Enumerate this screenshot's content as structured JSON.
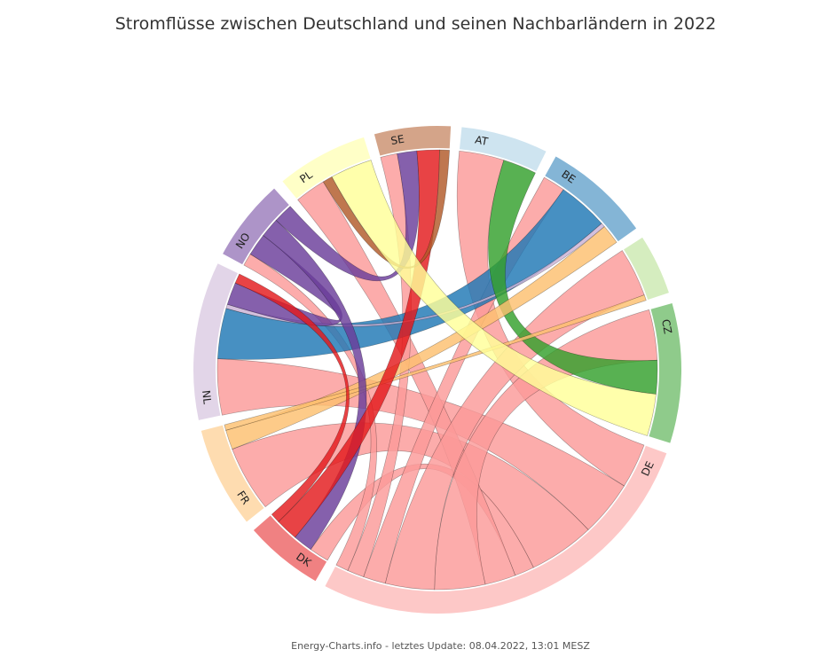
{
  "title": "Stromflüsse zwischen Deutschland und seinen Nachbarländern in 2022",
  "footer": "Energy-Charts.info - letztes Update: 08.04.2022, 13:01 MESZ",
  "chart_data": {
    "type": "chord",
    "title": "Stromflüsse zwischen Deutschland und seinen Nachbarländern in 2022",
    "countries": [
      {
        "id": "AT",
        "label": "AT",
        "color": "#a6cee3"
      },
      {
        "id": "BE",
        "label": "BE",
        "color": "#1f78b4"
      },
      {
        "id": "CH",
        "label": "",
        "color": "#b2df8a"
      },
      {
        "id": "CZ",
        "label": "CZ",
        "color": "#33a02c"
      },
      {
        "id": "DE",
        "label": "DE",
        "color": "#fb9a99"
      },
      {
        "id": "DK",
        "label": "DK",
        "color": "#e31a1c"
      },
      {
        "id": "FR",
        "label": "FR",
        "color": "#fdbf6f"
      },
      {
        "id": "NL",
        "label": "NL",
        "color": "#cab2d6"
      },
      {
        "id": "NO",
        "label": "NO",
        "color": "#6a3d9a"
      },
      {
        "id": "PL",
        "label": "PL",
        "color": "#ffff99"
      },
      {
        "id": "SE",
        "label": "SE",
        "color": "#b15928"
      }
    ],
    "flows": [
      {
        "from": "DE",
        "to": "AT",
        "value": 3.2
      },
      {
        "from": "DE",
        "to": "NL",
        "value": 4.0
      },
      {
        "from": "DE",
        "to": "FR",
        "value": 4.7
      },
      {
        "from": "DE",
        "to": "DK",
        "value": 1.4
      },
      {
        "from": "DE",
        "to": "PL",
        "value": 2.2
      },
      {
        "from": "DE",
        "to": "CZ",
        "value": 3.6
      },
      {
        "from": "DE",
        "to": "CH",
        "value": 3.5
      },
      {
        "from": "DE",
        "to": "BE",
        "value": 1.6
      },
      {
        "from": "DE",
        "to": "SE",
        "value": 1.2
      },
      {
        "from": "DE",
        "to": "NO",
        "value": 0.9
      },
      {
        "from": "BE",
        "to": "NL",
        "value": 3.6
      },
      {
        "from": "NL",
        "to": "BE",
        "value": 0.3
      },
      {
        "from": "CZ",
        "to": "AT",
        "value": 2.4
      },
      {
        "from": "FR",
        "to": "BE",
        "value": 1.4
      },
      {
        "from": "FR",
        "to": "CH",
        "value": 0.4
      },
      {
        "from": "NO",
        "to": "NL",
        "value": 1.6
      },
      {
        "from": "NO",
        "to": "DK",
        "value": 1.4
      },
      {
        "from": "NO",
        "to": "SE",
        "value": 1.4
      },
      {
        "from": "DK",
        "to": "SE",
        "value": 1.6
      },
      {
        "from": "SE",
        "to": "PL",
        "value": 0.7
      },
      {
        "from": "PL",
        "to": "CZ",
        "value": 3.0
      },
      {
        "from": "DK",
        "to": "NL",
        "value": 0.7
      }
    ]
  }
}
